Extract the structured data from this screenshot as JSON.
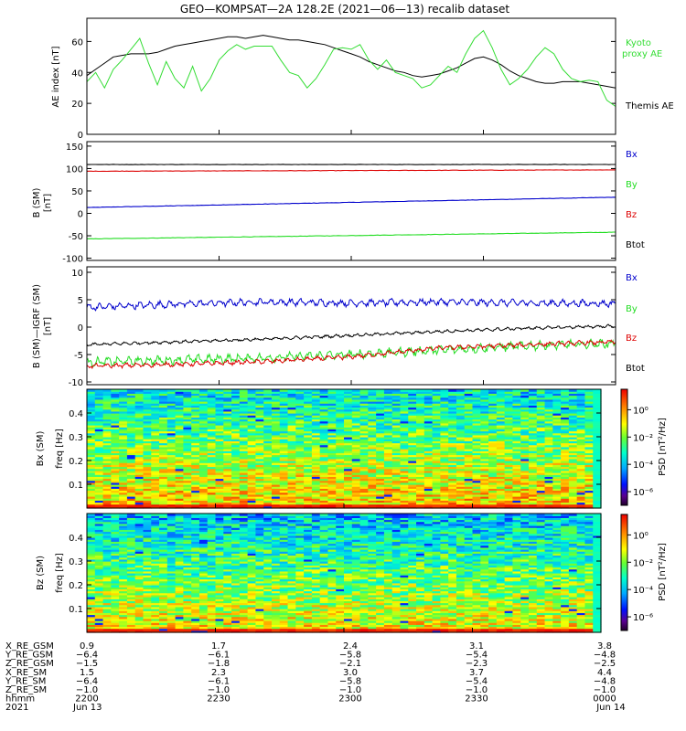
{
  "title": "GEO—KOMPSAT—2A 128.2E (2021—06—13) recalib dataset",
  "colors": {
    "black": "#000000",
    "green": "#22dd22",
    "blue": "#0000cc",
    "red": "#dd0000",
    "kyoto": "#33dd33"
  },
  "colorbar": {
    "label": "PSD [nT²/Hz]",
    "ticks": [
      "10⁰",
      "10⁻²",
      "10⁻⁴",
      "10⁻⁶"
    ],
    "range_log10": [
      -7,
      1.5
    ]
  },
  "chart_data": [
    {
      "type": "line",
      "panel": "ae",
      "ylabel": "AE index [nT]",
      "ylim": [
        0,
        75
      ],
      "yticks": [
        0,
        20,
        40,
        60
      ],
      "x": [
        0,
        2,
        4,
        6,
        8,
        10,
        12,
        14,
        16,
        18,
        20,
        22,
        24,
        26,
        28,
        30,
        32,
        34,
        36,
        38,
        40,
        42,
        44,
        46,
        48,
        50,
        52,
        54,
        56,
        58,
        60,
        62,
        64,
        66,
        68,
        70,
        72,
        74,
        76,
        78,
        80,
        82,
        84,
        86,
        88,
        90,
        92,
        94,
        96,
        98,
        100,
        102,
        104,
        106,
        108,
        110,
        112,
        114,
        116,
        118,
        120
      ],
      "series": [
        {
          "name": "Themis AE",
          "color": "#000000",
          "values": [
            38,
            42,
            46,
            50,
            51,
            52,
            52,
            52,
            53,
            55,
            57,
            58,
            59,
            60,
            61,
            62,
            63,
            63,
            62,
            63,
            64,
            63,
            62,
            61,
            61,
            60,
            59,
            58,
            56,
            54,
            52,
            50,
            47,
            45,
            43,
            41,
            40,
            38,
            37,
            38,
            39,
            41,
            43,
            46,
            49,
            50,
            48,
            45,
            41,
            38,
            36,
            34,
            33,
            33,
            34,
            34,
            34,
            33,
            32,
            31,
            30
          ]
        },
        {
          "name": "Kyoto proxy AE",
          "color": "#33dd33",
          "values": [
            34,
            40,
            30,
            42,
            48,
            55,
            62,
            46,
            32,
            47,
            36,
            30,
            44,
            28,
            36,
            48,
            54,
            58,
            55,
            57,
            57,
            57,
            48,
            40,
            38,
            30,
            36,
            45,
            55,
            56,
            55,
            58,
            48,
            42,
            48,
            40,
            38,
            36,
            30,
            32,
            38,
            44,
            40,
            52,
            62,
            67,
            56,
            42,
            32,
            36,
            42,
            50,
            56,
            52,
            42,
            36,
            34,
            35,
            34,
            22,
            18
          ]
        }
      ]
    },
    {
      "type": "line",
      "panel": "b_sm",
      "ylabel": "B (SM) [nT]",
      "ylim": [
        -105,
        160
      ],
      "yticks": [
        -100,
        -50,
        0,
        50,
        100,
        150
      ],
      "x": [
        0,
        120
      ],
      "series": [
        {
          "name": "Bx",
          "color": "#0000cc",
          "values": [
            13,
            36
          ]
        },
        {
          "name": "By",
          "color": "#22dd22",
          "values": [
            -57,
            -42
          ]
        },
        {
          "name": "Bz",
          "color": "#dd0000",
          "values": [
            94,
            97
          ]
        },
        {
          "name": "Btot",
          "color": "#000000",
          "values": [
            109,
            109
          ]
        }
      ]
    },
    {
      "type": "line",
      "panel": "b_minus_igrf",
      "ylabel": "B (SM)—IGRF (SM) [nT]",
      "ylim": [
        -10.5,
        11
      ],
      "yticks": [
        -10,
        -5,
        0,
        5,
        10
      ],
      "x": [
        0,
        20,
        40,
        60,
        80,
        100,
        120
      ],
      "series": [
        {
          "name": "Bx",
          "color": "#0000cc",
          "values": [
            3.6,
            4.2,
            4.6,
            4.4,
            4.6,
            4.4,
            4.3
          ]
        },
        {
          "name": "By",
          "color": "#22dd22",
          "values": [
            -6.4,
            -6.0,
            -5.6,
            -5.0,
            -4.2,
            -3.4,
            -3.0
          ]
        },
        {
          "name": "Bz",
          "color": "#dd0000",
          "values": [
            -7.1,
            -6.8,
            -6.3,
            -5.4,
            -3.8,
            -3.2,
            -2.7
          ]
        },
        {
          "name": "Btot",
          "color": "#000000",
          "values": [
            -3.2,
            -2.7,
            -2.2,
            -1.5,
            -0.8,
            -0.2,
            0.2
          ]
        }
      ]
    },
    {
      "type": "heatmap",
      "panel": "spec_bx",
      "ylabel": "Bx (SM) freq [Hz]",
      "ylim": [
        0,
        0.5
      ],
      "yticks": [
        0.1,
        0.2,
        0.3,
        0.4
      ]
    },
    {
      "type": "heatmap",
      "panel": "spec_bz",
      "ylabel": "Bz (SM) freq [Hz]",
      "ylim": [
        0,
        0.5
      ],
      "yticks": [
        0.1,
        0.2,
        0.3,
        0.4
      ]
    }
  ],
  "panel_labels": {
    "ae": {
      "ylabel": "AE index [nT]",
      "legend": [
        "Kyoto proxy AE",
        "Themis AE"
      ]
    },
    "b_sm": {
      "line1": "B (SM)",
      "line2": "[nT]",
      "legend": [
        "Bx",
        "By",
        "Bz",
        "Btot"
      ]
    },
    "b_minus_igrf": {
      "line1": "B (SM)—IGRF (SM)",
      "line2": "[nT]",
      "legend": [
        "Bx",
        "By",
        "Bz",
        "Btot"
      ]
    },
    "spec_bx": {
      "line1": "Bx (SM)",
      "line2": "freq [Hz]"
    },
    "spec_bz": {
      "line1": "Bz (SM)",
      "line2": "freq [Hz]"
    }
  },
  "ephemeris": {
    "row_labels": [
      "X_RE_GSM",
      "Y_RE_GSM",
      "Z_RE_GSM",
      "X_RE_SM",
      "Y_RE_SM",
      "Z_RE_SM",
      "hhmm",
      "2021"
    ],
    "columns": [
      [
        "0.9",
        "−6.4",
        "−1.5",
        "1.5",
        "−6.4",
        "−1.0",
        "2200",
        "Jun 13"
      ],
      [
        "1.7",
        "−6.1",
        "−1.8",
        "2.3",
        "−6.1",
        "−1.0",
        "2230",
        ""
      ],
      [
        "2.4",
        "−5.8",
        "−2.1",
        "3.0",
        "−5.8",
        "−1.0",
        "2300",
        ""
      ],
      [
        "3.1",
        "−5.4",
        "−2.3",
        "3.7",
        "−5.4",
        "−1.0",
        "2330",
        ""
      ],
      [
        "3.8",
        "−4.8",
        "−2.5",
        "4.4",
        "−4.8",
        "−1.0",
        "0000",
        "Jun 14"
      ]
    ]
  }
}
